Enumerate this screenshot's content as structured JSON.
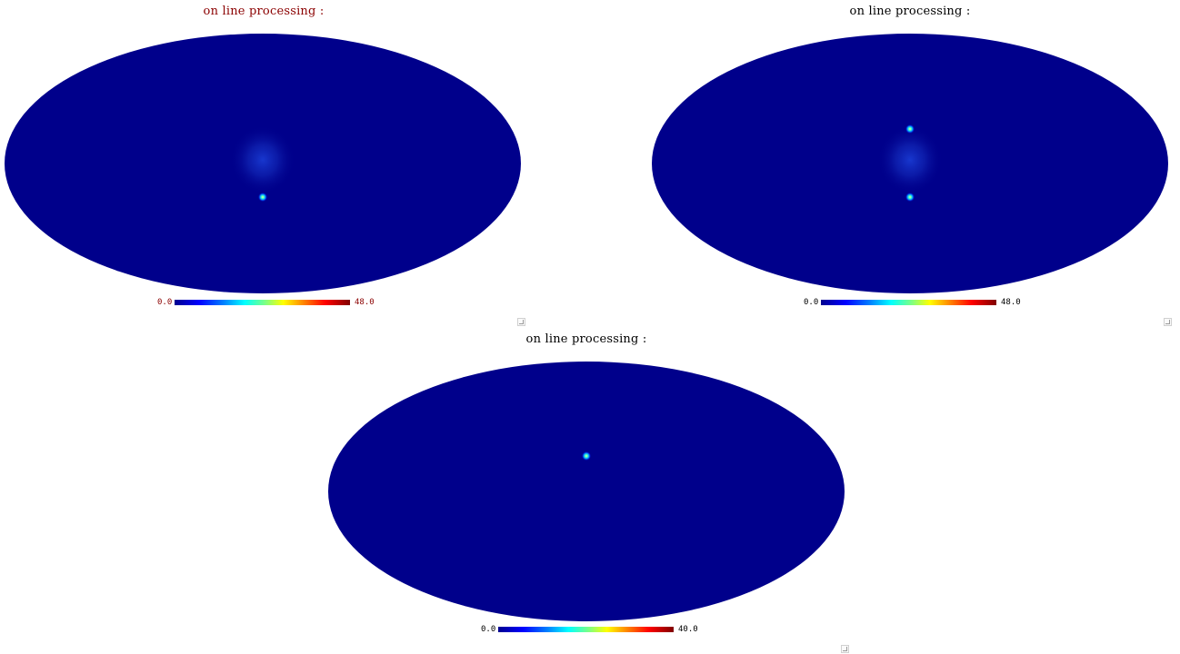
{
  "colors": {
    "map_background": "#00008b",
    "colorbar_low": "#00008f",
    "colorbar_high": "#800000"
  },
  "panels": [
    {
      "title": "on line processing :",
      "title_color": "#8b0000",
      "colorbar_min": "0.0",
      "colorbar_max": "48.0",
      "label_color": "#8b0000",
      "has_diffuse_glow": true,
      "hotspot_count": 1
    },
    {
      "title": "on line processing :",
      "title_color": "#000000",
      "colorbar_min": "0.0",
      "colorbar_max": "48.0",
      "label_color": "#000000",
      "has_diffuse_glow": true,
      "hotspot_count": 2
    },
    {
      "title": "on line processing :",
      "title_color": "#000000",
      "colorbar_min": "0.0",
      "colorbar_max": "40.0",
      "label_color": "#000000",
      "has_diffuse_glow": false,
      "hotspot_count": 1
    }
  ]
}
